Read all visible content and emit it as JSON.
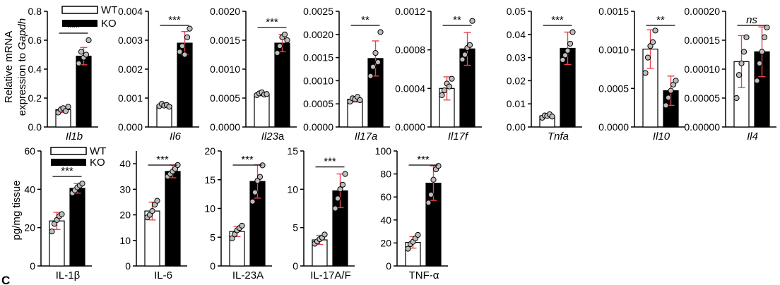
{
  "panel_letter": "C",
  "legend": {
    "wt": "WT",
    "ko": "KO"
  },
  "y_labels": {
    "top_line1": "Relative mRNA",
    "top_line2_prefix": "expression to ",
    "top_line2_gene": "Gapdh",
    "bottom": "pg/mg tissue"
  },
  "colors": {
    "wt_fill": "#ffffff",
    "ko_fill": "#000000",
    "error_bar": "#e8454f",
    "point_fill": "#bdbdbd"
  },
  "chart_data": [
    {
      "type": "bar",
      "row": "mrna",
      "title": "Il1b",
      "italic_parts": "Il1b",
      "categories": [
        "WT",
        "KO"
      ],
      "values": [
        0.12,
        0.49
      ],
      "errors": [
        0.02,
        0.06
      ],
      "ylim": [
        0,
        0.8
      ],
      "ticks": [
        0.0,
        0.2,
        0.4,
        0.6,
        0.8
      ],
      "tick_labels": [
        "0.0",
        "0.2",
        "0.4",
        "0.6",
        "0.8"
      ],
      "points": [
        [
          0.1,
          0.12,
          0.13,
          0.11,
          0.14
        ],
        [
          0.44,
          0.52,
          0.48,
          0.5,
          0.6
        ]
      ],
      "significance": "***"
    },
    {
      "type": "bar",
      "row": "mrna",
      "title": "Il6",
      "italic_parts": "Il6",
      "categories": [
        "WT",
        "KO"
      ],
      "values": [
        0.00075,
        0.0029
      ],
      "errors": [
        5e-05,
        0.0004
      ],
      "ylim": [
        0,
        0.004
      ],
      "ticks": [
        0,
        0.001,
        0.002,
        0.003,
        0.004
      ],
      "tick_labels": [
        "0.000",
        "0.001",
        "0.002",
        "0.003",
        "0.004"
      ],
      "points": [
        [
          0.00072,
          0.0008,
          0.00074,
          0.00076,
          0.0007
        ],
        [
          0.0026,
          0.0028,
          0.0025,
          0.0031,
          0.0034
        ]
      ],
      "significance": "***"
    },
    {
      "type": "bar",
      "row": "mrna",
      "title": "Il23a",
      "italic_parts": "Il23",
      "categories": [
        "WT",
        "KO"
      ],
      "values": [
        0.00057,
        0.00145
      ],
      "errors": [
        3e-05,
        0.00015
      ],
      "ylim": [
        0,
        0.002
      ],
      "ticks": [
        0,
        0.0005,
        0.001,
        0.0015,
        0.002
      ],
      "tick_labels": [
        "0.0000",
        "0.0005",
        "0.0010",
        "0.0015",
        "0.0020"
      ],
      "points": [
        [
          0.00055,
          0.00058,
          0.0006,
          0.00056,
          0.00057
        ],
        [
          0.00128,
          0.0014,
          0.00155,
          0.0016,
          0.0015
        ]
      ],
      "significance": "***"
    },
    {
      "type": "bar",
      "row": "mrna",
      "title": "Il17a",
      "italic_parts": "Il17a",
      "categories": [
        "WT",
        "KO"
      ],
      "values": [
        0.0006,
        0.00148
      ],
      "errors": [
        6e-05,
        0.00038
      ],
      "ylim": [
        0,
        0.0025
      ],
      "ticks": [
        0,
        0.0005,
        0.001,
        0.0015,
        0.002,
        0.0025
      ],
      "tick_labels": [
        "0.0000",
        "0.0005",
        "0.0010",
        "0.0015",
        "0.0020",
        "0.0025"
      ],
      "points": [
        [
          0.00055,
          0.00062,
          0.0006,
          0.00065,
          0.00058
        ],
        [
          0.0011,
          0.0013,
          0.0016,
          0.0014,
          0.00205
        ]
      ],
      "significance": "**"
    },
    {
      "type": "bar",
      "row": "mrna",
      "title": "Il17f",
      "italic_parts": "Il17f",
      "categories": [
        "WT",
        "KO"
      ],
      "values": [
        0.0004,
        0.00081
      ],
      "errors": [
        0.00012,
        0.00017
      ],
      "ylim": [
        0,
        0.0012
      ],
      "ticks": [
        0,
        0.0004,
        0.0008,
        0.0012
      ],
      "tick_labels": [
        "0.0000",
        "0.0004",
        "0.0008",
        "0.0012"
      ],
      "points": [
        [
          0.00033,
          0.00038,
          0.00045,
          0.00042,
          0.0005
        ],
        [
          0.0007,
          0.00075,
          0.00082,
          0.00085,
          0.0011
        ]
      ],
      "significance": "**"
    },
    {
      "type": "bar",
      "row": "mrna",
      "title": "Tnfa",
      "italic_parts": "Tnfa",
      "categories": [
        "WT",
        "KO"
      ],
      "values": [
        0.0048,
        0.034
      ],
      "errors": [
        0.0008,
        0.007
      ],
      "ylim": [
        0,
        0.05
      ],
      "ticks": [
        0,
        0.01,
        0.02,
        0.03,
        0.04,
        0.05
      ],
      "tick_labels": [
        "0.00",
        "0.01",
        "0.02",
        "0.03",
        "0.04",
        "0.05"
      ],
      "points": [
        [
          0.004,
          0.005,
          0.0048,
          0.0055,
          0.0045
        ],
        [
          0.029,
          0.031,
          0.033,
          0.036,
          0.041
        ]
      ],
      "significance": "***"
    },
    {
      "type": "bar",
      "row": "mrna",
      "title": "Il10",
      "italic_parts": "Il10",
      "categories": [
        "WT",
        "KO"
      ],
      "values": [
        0.00101,
        0.00047
      ],
      "errors": [
        0.00025,
        0.00019
      ],
      "ylim": [
        0,
        0.0015
      ],
      "ticks": [
        0,
        0.0005,
        0.001,
        0.0015
      ],
      "tick_labels": [
        "0.0000",
        "0.0005",
        "0.0010",
        "0.0015"
      ],
      "points": [
        [
          0.0007,
          0.0009,
          0.00105,
          0.0011,
          0.00125
        ],
        [
          0.00028,
          0.00038,
          0.00047,
          0.00055,
          0.0006
        ]
      ],
      "significance": "**"
    },
    {
      "type": "bar",
      "row": "mrna",
      "title": "Il4",
      "italic_parts": "Il4",
      "categories": [
        "WT",
        "KO"
      ],
      "values": [
        0.000113,
        0.00013
      ],
      "errors": [
        4.5e-05,
        4.3e-05
      ],
      "ylim": [
        0,
        0.0002
      ],
      "ticks": [
        0,
        5e-05,
        0.0001,
        0.00015,
        0.0002
      ],
      "tick_labels": [
        "0.00000",
        "0.00005",
        "0.00010",
        "0.00015",
        "0.00020"
      ],
      "points": [
        [
          5e-05,
          9e-05,
          0.00011,
          0.00013,
          0.000155
        ],
        [
          8e-05,
          0.00011,
          0.00013,
          0.000155,
          0.000172
        ]
      ],
      "significance": "ns"
    },
    {
      "type": "bar",
      "row": "protein",
      "title": "IL-1β",
      "categories": [
        "WT",
        "KO"
      ],
      "values": [
        23.5,
        40.5
      ],
      "errors": [
        4.5,
        2.5
      ],
      "ylim": [
        0,
        60
      ],
      "ticks": [
        0,
        20,
        40,
        60
      ],
      "tick_labels": [
        "0",
        "20",
        "40",
        "60"
      ],
      "points": [
        [
          18,
          22,
          24,
          26,
          27
        ],
        [
          38,
          39.5,
          41,
          42,
          43
        ]
      ],
      "significance": "***"
    },
    {
      "type": "bar",
      "row": "protein",
      "title": "IL-6",
      "categories": [
        "WT",
        "KO"
      ],
      "values": [
        21.5,
        37
      ],
      "errors": [
        3.5,
        2.5
      ],
      "ylim": [
        0,
        45
      ],
      "ticks": [
        0,
        10,
        20,
        30,
        40
      ],
      "tick_labels": [
        "0",
        "10",
        "20",
        "30",
        "40"
      ],
      "points": [
        [
          19,
          20,
          21.5,
          24,
          25.5
        ],
        [
          35,
          36,
          37,
          38,
          39.5
        ]
      ],
      "significance": "***"
    },
    {
      "type": "bar",
      "row": "protein",
      "title": "IL-23A",
      "categories": [
        "WT",
        "KO"
      ],
      "values": [
        6,
        14.7
      ],
      "errors": [
        0.9,
        2.9
      ],
      "ylim": [
        0,
        20
      ],
      "ticks": [
        0,
        5,
        10,
        15,
        20
      ],
      "tick_labels": [
        "0",
        "5",
        "10",
        "15",
        "20"
      ],
      "points": [
        [
          4.8,
          5.5,
          6.2,
          6.6,
          7.0
        ],
        [
          11.2,
          12.8,
          14.8,
          15.5,
          17.5
        ]
      ],
      "significance": "***"
    },
    {
      "type": "bar",
      "row": "protein",
      "title": "IL-17A/F",
      "categories": [
        "WT",
        "KO"
      ],
      "values": [
        3.4,
        9.8
      ],
      "errors": [
        0.6,
        2.2
      ],
      "ylim": [
        0,
        15
      ],
      "ticks": [
        0,
        5,
        10,
        15
      ],
      "tick_labels": [
        "0",
        "5",
        "10",
        "15"
      ],
      "points": [
        [
          2.9,
          3.2,
          3.5,
          3.7,
          4.1
        ],
        [
          7.5,
          8.8,
          10.0,
          10.6,
          12.0
        ]
      ],
      "significance": "***"
    },
    {
      "type": "bar",
      "row": "protein",
      "title": "TNF-α",
      "categories": [
        "WT",
        "KO"
      ],
      "values": [
        20.5,
        72
      ],
      "errors": [
        5,
        15
      ],
      "ylim": [
        0,
        100
      ],
      "ticks": [
        0,
        20,
        40,
        60,
        80,
        100
      ],
      "tick_labels": [
        "0",
        "20",
        "40",
        "60",
        "80",
        "100"
      ],
      "points": [
        [
          15,
          19,
          21,
          24,
          27
        ],
        [
          55,
          62,
          75,
          84,
          87
        ]
      ],
      "significance": "***"
    }
  ]
}
